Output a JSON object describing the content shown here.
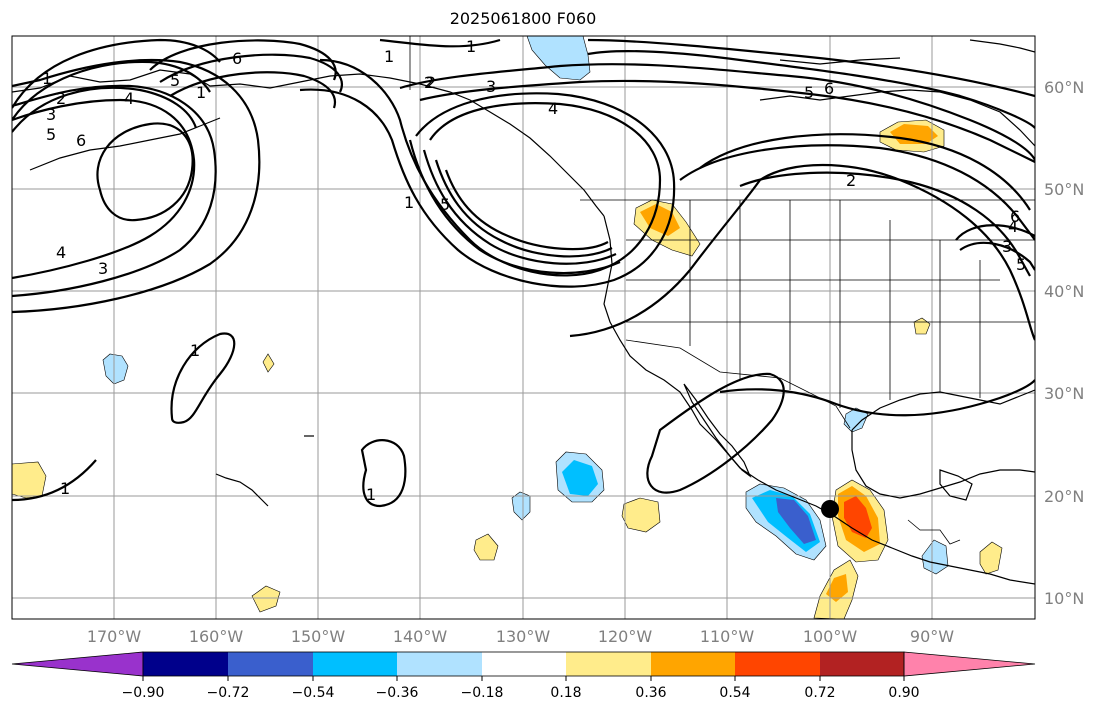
{
  "title": "2025061800 F060",
  "map": {
    "longitude_labels": [
      "170°W",
      "160°W",
      "150°W",
      "140°W",
      "130°W",
      "120°W",
      "110°W",
      "100°W",
      "90°W"
    ],
    "latitude_labels": [
      "60°N",
      "50°N",
      "40°N",
      "30°N",
      "20°N",
      "10°N"
    ],
    "gridlines": true,
    "marker": {
      "name": "point-marker",
      "lon": -99.5,
      "lat": 18.5,
      "color": "#000000"
    },
    "contour_labels": [
      "1",
      "2",
      "3",
      "4",
      "5",
      "6",
      "1",
      "2",
      "3",
      "4",
      "5",
      "6",
      "1",
      "5",
      "1",
      "2",
      "3",
      "4",
      "5",
      "6",
      "2",
      "3",
      "4",
      "5",
      "6",
      "1",
      "1",
      "1",
      "1"
    ],
    "contour_color": "#000000"
  },
  "colorbar": {
    "ticks": [
      "−0.90",
      "−0.72",
      "−0.54",
      "−0.36",
      "−0.18",
      "0.18",
      "0.36",
      "0.54",
      "0.72",
      "0.90"
    ],
    "colors": [
      "#9932cc",
      "#00008b",
      "#3a5fcd",
      "#00bfff",
      "#b0e2ff",
      "#ffffff",
      "#ffec8b",
      "#ffa500",
      "#ff4500",
      "#b22222",
      "#ff82ab"
    ],
    "extend": "both"
  }
}
